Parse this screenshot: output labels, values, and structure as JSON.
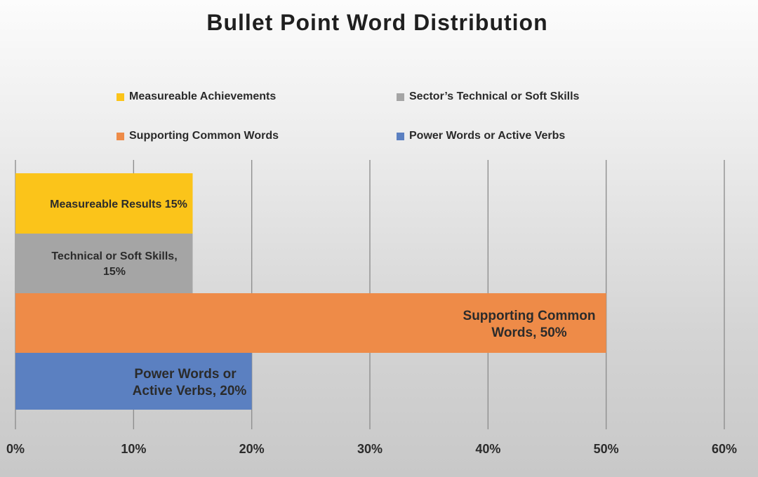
{
  "chart_data": {
    "type": "bar",
    "orientation": "horizontal",
    "stacked": false,
    "title": "Bullet Point Word Distribution",
    "categories": [
      "Measureable Achievements",
      "Sector’s Technical or Soft Skills",
      "Supporting Common Words",
      "Power Words or Active Verbs"
    ],
    "values": [
      15,
      15,
      50,
      20
    ],
    "units": "%",
    "colors": [
      "#fbc41a",
      "#a5a5a5",
      "#ee8b48",
      "#5b80c1"
    ],
    "data_labels": [
      [
        "Measureable Results 15%"
      ],
      [
        "Technical or Soft Skills,",
        "15%"
      ],
      [
        "Supporting Common",
        "Words, 50%"
      ],
      [
        "Power Words or",
        "Active Verbs, 20%"
      ]
    ],
    "xlim": [
      0,
      60
    ],
    "x_ticks": [
      0,
      10,
      20,
      30,
      40,
      50,
      60
    ],
    "x_tick_labels": [
      "0%",
      "10%",
      "20%",
      "30%",
      "40%",
      "50%",
      "60%"
    ],
    "grid": true,
    "legend": {
      "position": "top",
      "entries": [
        "Measureable Achievements",
        "Sector’s Technical or Soft Skills",
        "Supporting Common Words",
        "Power Words or Active Verbs"
      ]
    }
  }
}
